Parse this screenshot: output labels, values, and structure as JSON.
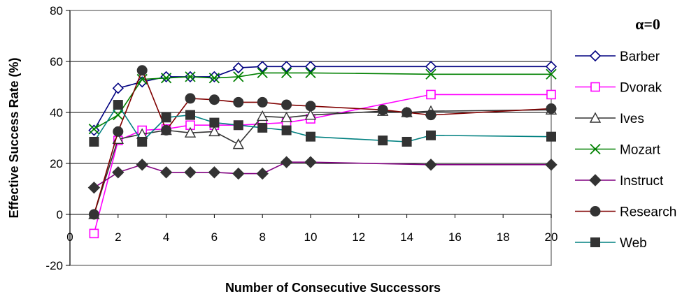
{
  "chart_data": {
    "type": "line",
    "title": "",
    "xlabel": "Number of Consecutive Successors",
    "ylabel": "Effective Success Rate (%)",
    "xlim": [
      0,
      20
    ],
    "ylim": [
      -20,
      80
    ],
    "xticks": [
      "0",
      "2",
      "4",
      "6",
      "8",
      "10",
      "12",
      "14",
      "16",
      "18",
      "20"
    ],
    "yticks": [
      "-20",
      "0",
      "20",
      "40",
      "60",
      "80"
    ],
    "grid": "horizontal major gridlines",
    "legend_title": "α=0",
    "legend_position": "right",
    "series": [
      {
        "name": "Barber",
        "color": "#000080",
        "marker": "diamond-open",
        "x": [
          1,
          2,
          3,
          4,
          5,
          6,
          7,
          8,
          9,
          10,
          15,
          20
        ],
        "y": [
          33,
          49.5,
          52,
          54,
          54,
          54,
          57.5,
          58,
          58,
          58,
          58,
          58
        ]
      },
      {
        "name": "Dvorak",
        "color": "#ff00ff",
        "marker": "square-open",
        "x": [
          1,
          2,
          3,
          4,
          5,
          6,
          7,
          8,
          9,
          10,
          15,
          20
        ],
        "y": [
          -7.5,
          29,
          33,
          33.5,
          35,
          35,
          35,
          35.5,
          36,
          37.5,
          47,
          47
        ]
      },
      {
        "name": "Ives",
        "color": "#333333",
        "marker": "triangle-open",
        "x": [
          1,
          2,
          3,
          4,
          5,
          6,
          7,
          8,
          9,
          10,
          13,
          14,
          15,
          20
        ],
        "y": [
          0,
          29.5,
          31.5,
          33,
          32,
          32.5,
          27.5,
          38.5,
          38,
          39,
          40.5,
          40,
          40.5,
          41
        ]
      },
      {
        "name": "Mozart",
        "color": "#008000",
        "marker": "x",
        "x": [
          1,
          2,
          3,
          4,
          5,
          6,
          7,
          8,
          9,
          10,
          15,
          20
        ],
        "y": [
          33.5,
          39,
          53,
          53.5,
          54,
          53.5,
          54,
          55.5,
          55.5,
          55.5,
          55,
          55
        ]
      },
      {
        "name": "Instruct",
        "color": "#800080",
        "marker": "diamond-filled",
        "x": [
          1,
          2,
          3,
          4,
          5,
          6,
          7,
          8,
          9,
          10,
          15,
          20
        ],
        "y": [
          10.5,
          16.5,
          19.5,
          16.5,
          16.5,
          16.5,
          16,
          16,
          20.5,
          20.5,
          19.5,
          19.5
        ]
      },
      {
        "name": "Research",
        "color": "#800000",
        "marker": "circle-filled",
        "x": [
          1,
          2,
          3,
          4,
          5,
          6,
          7,
          8,
          9,
          10,
          13,
          14,
          15,
          20
        ],
        "y": [
          0,
          32.5,
          56.5,
          33,
          45.5,
          45,
          44,
          44,
          43,
          42.5,
          41,
          40,
          39,
          41.5
        ]
      },
      {
        "name": "Web",
        "color": "#008080",
        "marker": "square-filled",
        "x": [
          1,
          2,
          3,
          4,
          5,
          6,
          7,
          8,
          9,
          10,
          13,
          14,
          15,
          20
        ],
        "y": [
          28.5,
          43,
          28.5,
          38,
          39,
          36,
          35,
          34,
          33,
          30.5,
          29,
          28.5,
          31,
          30.5
        ]
      }
    ]
  }
}
